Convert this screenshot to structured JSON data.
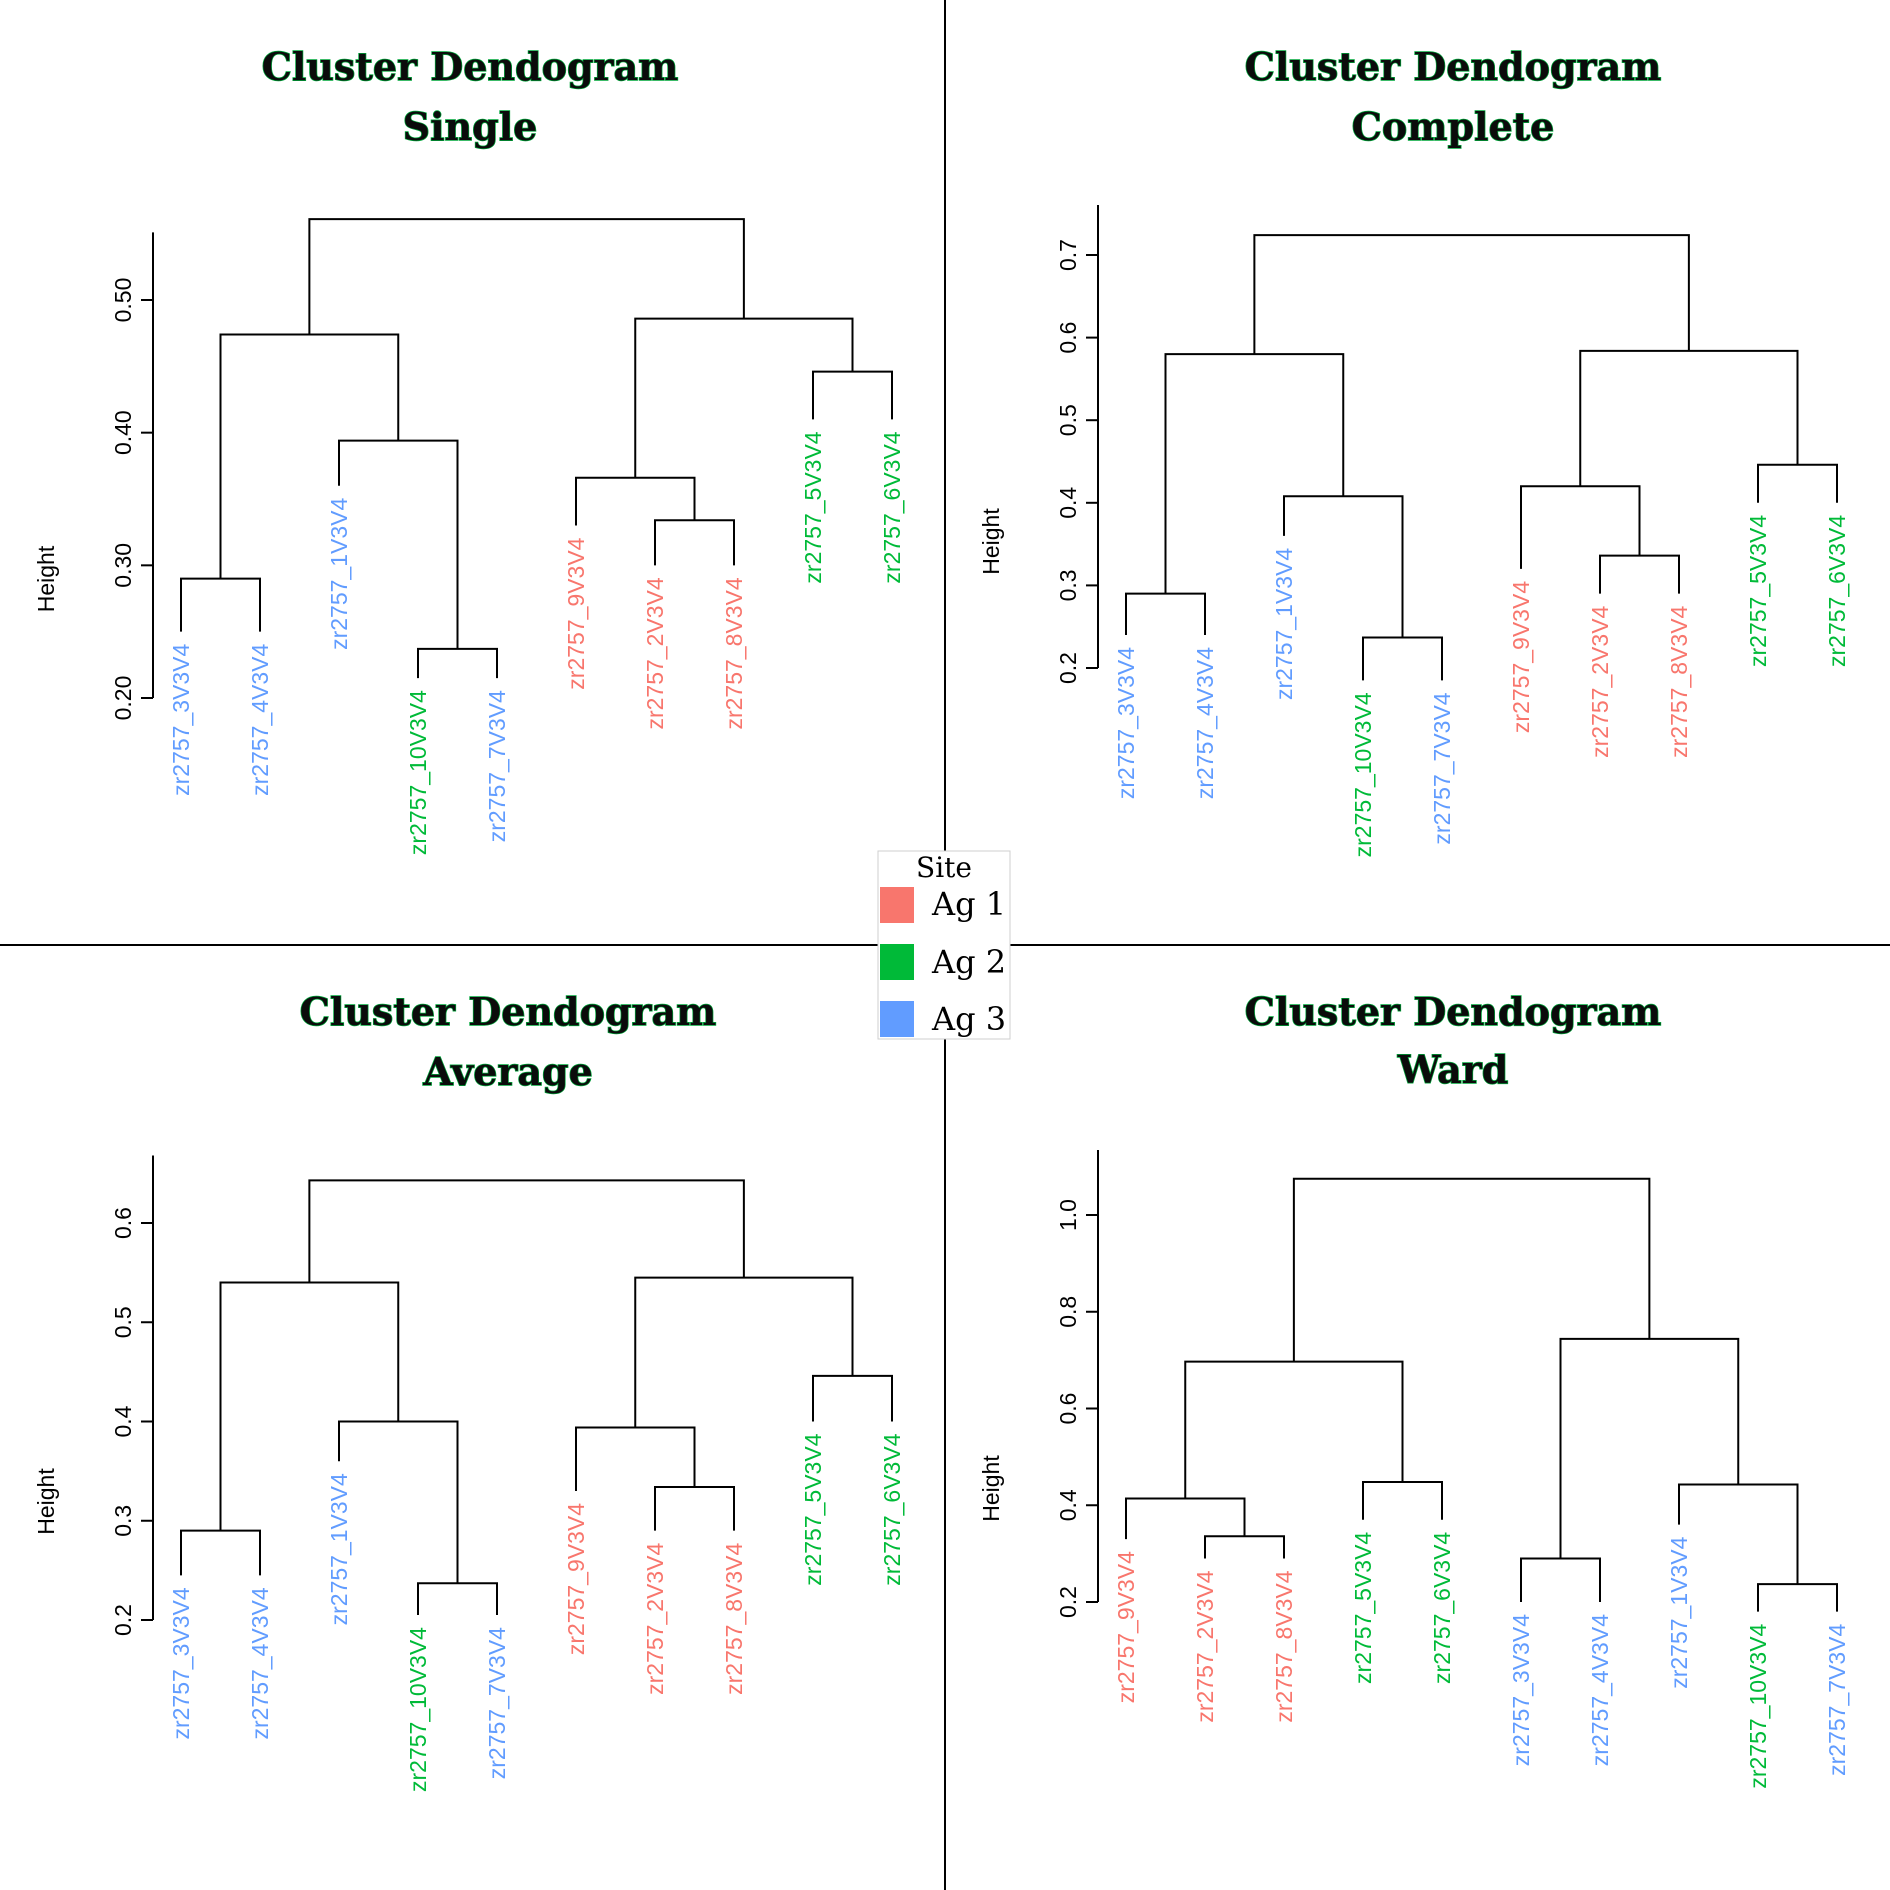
{
  "colors": {
    "Ag 1": "#f8766d",
    "Ag 2": "#00ba38",
    "Ag 3": "#619cff",
    "divider": "#000000"
  },
  "legend": {
    "title": "Site",
    "items": [
      {
        "label": "Ag 1",
        "color": "#f8766d"
      },
      {
        "label": "Ag 2",
        "color": "#00ba38"
      },
      {
        "label": "Ag 3",
        "color": "#619cff"
      }
    ]
  },
  "chart_data": [
    {
      "type": "dendrogram",
      "title": "Cluster Dendogram",
      "subtitle": "Single",
      "ylabel": "Height",
      "yticks": [
        "0.20",
        "0.30",
        "0.40",
        "0.50"
      ],
      "ylim": [
        0.2,
        0.5
      ],
      "leaves": [
        {
          "label": "zr2757_3V3V4",
          "site": "Ag 3"
        },
        {
          "label": "zr2757_4V3V4",
          "site": "Ag 3"
        },
        {
          "label": "zr2757_1V3V4",
          "site": "Ag 3"
        },
        {
          "label": "zr2757_10V3V4",
          "site": "Ag 2"
        },
        {
          "label": "zr2757_7V3V4",
          "site": "Ag 3"
        },
        {
          "label": "zr2757_9V3V4",
          "site": "Ag 1"
        },
        {
          "label": "zr2757_2V3V4",
          "site": "Ag 1"
        },
        {
          "label": "zr2757_8V3V4",
          "site": "Ag 1"
        },
        {
          "label": "zr2757_5V3V4",
          "site": "Ag 2"
        },
        {
          "label": "zr2757_6V3V4",
          "site": "Ag 2"
        }
      ],
      "leaf_heights": [
        0.25,
        0.25,
        0.36,
        0.215,
        0.215,
        0.33,
        0.3,
        0.3,
        0.41,
        0.41
      ],
      "merges": [
        {
          "children": [
            "L0",
            "L1"
          ],
          "height": 0.29
        },
        {
          "children": [
            "L3",
            "L4"
          ],
          "height": 0.237
        },
        {
          "children": [
            "L2",
            "M1"
          ],
          "height": 0.394
        },
        {
          "children": [
            "M0",
            "M2"
          ],
          "height": 0.474
        },
        {
          "children": [
            "L6",
            "L7"
          ],
          "height": 0.334
        },
        {
          "children": [
            "L5",
            "M4"
          ],
          "height": 0.366
        },
        {
          "children": [
            "L8",
            "L9"
          ],
          "height": 0.446
        },
        {
          "children": [
            "M5",
            "M6"
          ],
          "height": 0.486
        },
        {
          "children": [
            "M3",
            "M7"
          ],
          "height": 0.561
        }
      ]
    },
    {
      "type": "dendrogram",
      "title": "Cluster Dendogram",
      "subtitle": "Complete",
      "ylabel": "Height",
      "yticks": [
        "0.2",
        "0.3",
        "0.4",
        "0.5",
        "0.6",
        "0.7"
      ],
      "ylim": [
        0.2,
        0.7
      ],
      "leaves": [
        {
          "label": "zr2757_3V3V4",
          "site": "Ag 3"
        },
        {
          "label": "zr2757_4V3V4",
          "site": "Ag 3"
        },
        {
          "label": "zr2757_1V3V4",
          "site": "Ag 3"
        },
        {
          "label": "zr2757_10V3V4",
          "site": "Ag 2"
        },
        {
          "label": "zr2757_7V3V4",
          "site": "Ag 3"
        },
        {
          "label": "zr2757_9V3V4",
          "site": "Ag 1"
        },
        {
          "label": "zr2757_2V3V4",
          "site": "Ag 1"
        },
        {
          "label": "zr2757_8V3V4",
          "site": "Ag 1"
        },
        {
          "label": "zr2757_5V3V4",
          "site": "Ag 2"
        },
        {
          "label": "zr2757_6V3V4",
          "site": "Ag 2"
        }
      ],
      "leaf_heights": [
        0.24,
        0.24,
        0.36,
        0.185,
        0.185,
        0.32,
        0.29,
        0.29,
        0.4,
        0.4
      ],
      "merges": [
        {
          "children": [
            "L0",
            "L1"
          ],
          "height": 0.29
        },
        {
          "children": [
            "L3",
            "L4"
          ],
          "height": 0.237
        },
        {
          "children": [
            "L2",
            "M1"
          ],
          "height": 0.408
        },
        {
          "children": [
            "M0",
            "M2"
          ],
          "height": 0.58
        },
        {
          "children": [
            "L6",
            "L7"
          ],
          "height": 0.336
        },
        {
          "children": [
            "L5",
            "M4"
          ],
          "height": 0.42
        },
        {
          "children": [
            "L8",
            "L9"
          ],
          "height": 0.446
        },
        {
          "children": [
            "M5",
            "M6"
          ],
          "height": 0.584
        },
        {
          "children": [
            "M3",
            "M7"
          ],
          "height": 0.724
        }
      ]
    },
    {
      "type": "dendrogram",
      "title": "Cluster Dendogram",
      "subtitle": "Average",
      "ylabel": "Height",
      "yticks": [
        "0.2",
        "0.3",
        "0.4",
        "0.5",
        "0.6"
      ],
      "ylim": [
        0.2,
        0.6
      ],
      "leaves": [
        {
          "label": "zr2757_3V3V4",
          "site": "Ag 3"
        },
        {
          "label": "zr2757_4V3V4",
          "site": "Ag 3"
        },
        {
          "label": "zr2757_1V3V4",
          "site": "Ag 3"
        },
        {
          "label": "zr2757_10V3V4",
          "site": "Ag 2"
        },
        {
          "label": "zr2757_7V3V4",
          "site": "Ag 3"
        },
        {
          "label": "zr2757_9V3V4",
          "site": "Ag 1"
        },
        {
          "label": "zr2757_2V3V4",
          "site": "Ag 1"
        },
        {
          "label": "zr2757_8V3V4",
          "site": "Ag 1"
        },
        {
          "label": "zr2757_5V3V4",
          "site": "Ag 2"
        },
        {
          "label": "zr2757_6V3V4",
          "site": "Ag 2"
        }
      ],
      "leaf_heights": [
        0.245,
        0.245,
        0.36,
        0.205,
        0.205,
        0.33,
        0.29,
        0.29,
        0.4,
        0.4
      ],
      "merges": [
        {
          "children": [
            "L0",
            "L1"
          ],
          "height": 0.29
        },
        {
          "children": [
            "L3",
            "L4"
          ],
          "height": 0.237
        },
        {
          "children": [
            "L2",
            "M1"
          ],
          "height": 0.4
        },
        {
          "children": [
            "M0",
            "M2"
          ],
          "height": 0.54
        },
        {
          "children": [
            "L6",
            "L7"
          ],
          "height": 0.334
        },
        {
          "children": [
            "L5",
            "M4"
          ],
          "height": 0.394
        },
        {
          "children": [
            "L8",
            "L9"
          ],
          "height": 0.446
        },
        {
          "children": [
            "M5",
            "M6"
          ],
          "height": 0.545
        },
        {
          "children": [
            "M3",
            "M7"
          ],
          "height": 0.643
        }
      ]
    },
    {
      "type": "dendrogram",
      "title": "Cluster Dendogram",
      "subtitle": "Ward",
      "ylabel": "Height",
      "yticks": [
        "0.2",
        "0.4",
        "0.6",
        "0.8",
        "1.0"
      ],
      "ylim": [
        0.2,
        1.0
      ],
      "leaves": [
        {
          "label": "zr2757_9V3V4",
          "site": "Ag 1"
        },
        {
          "label": "zr2757_2V3V4",
          "site": "Ag 1"
        },
        {
          "label": "zr2757_8V3V4",
          "site": "Ag 1"
        },
        {
          "label": "zr2757_5V3V4",
          "site": "Ag 2"
        },
        {
          "label": "zr2757_6V3V4",
          "site": "Ag 2"
        },
        {
          "label": "zr2757_3V3V4",
          "site": "Ag 3"
        },
        {
          "label": "zr2757_4V3V4",
          "site": "Ag 3"
        },
        {
          "label": "zr2757_1V3V4",
          "site": "Ag 3"
        },
        {
          "label": "zr2757_10V3V4",
          "site": "Ag 2"
        },
        {
          "label": "zr2757_7V3V4",
          "site": "Ag 3"
        }
      ],
      "leaf_heights": [
        0.33,
        0.29,
        0.29,
        0.37,
        0.37,
        0.2,
        0.2,
        0.36,
        0.18,
        0.18
      ],
      "merges": [
        {
          "children": [
            "L1",
            "L2"
          ],
          "height": 0.336
        },
        {
          "children": [
            "L0",
            "M0"
          ],
          "height": 0.414
        },
        {
          "children": [
            "L3",
            "L4"
          ],
          "height": 0.448
        },
        {
          "children": [
            "M1",
            "M2"
          ],
          "height": 0.697
        },
        {
          "children": [
            "L5",
            "L6"
          ],
          "height": 0.29
        },
        {
          "children": [
            "L8",
            "L9"
          ],
          "height": 0.237
        },
        {
          "children": [
            "L7",
            "M5"
          ],
          "height": 0.443
        },
        {
          "children": [
            "M4",
            "M6"
          ],
          "height": 0.744
        },
        {
          "children": [
            "M3",
            "M7"
          ],
          "height": 1.075
        }
      ]
    }
  ]
}
